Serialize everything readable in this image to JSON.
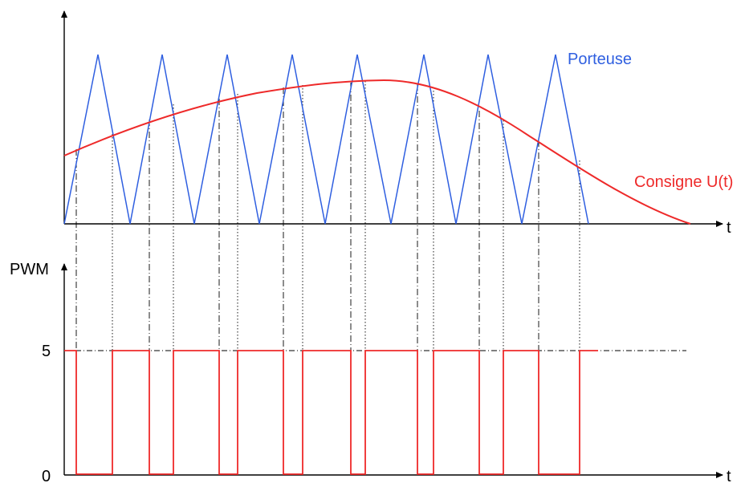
{
  "labels": {
    "carrier": "Porteuse",
    "setpoint": "Consigne U(t)",
    "time_top": "t",
    "time_bottom": "t",
    "pwm_axis": "PWM",
    "level_high": "5",
    "level_low": "0"
  },
  "colors": {
    "carrier": "#2f5fe0",
    "setpoint": "#ee2a2a",
    "pwm": "#ee2a2a",
    "axis": "#000000",
    "guide": "#000000"
  },
  "pwm_levels": {
    "low": 0,
    "high": 5
  },
  "pwm_transitions": [
    {
      "to": 0
    },
    {
      "to": 5
    },
    {
      "to": 0
    },
    {
      "to": 5
    },
    {
      "to": 0
    },
    {
      "to": 5
    },
    {
      "to": 0
    },
    {
      "to": 5
    },
    {
      "to": 0
    },
    {
      "to": 5
    },
    {
      "to": 0
    },
    {
      "to": 5
    },
    {
      "to": 0
    },
    {
      "to": 5
    },
    {
      "to": 0
    },
    {
      "to": 5
    },
    {
      "to": 0
    },
    {
      "to": 5
    }
  ]
}
